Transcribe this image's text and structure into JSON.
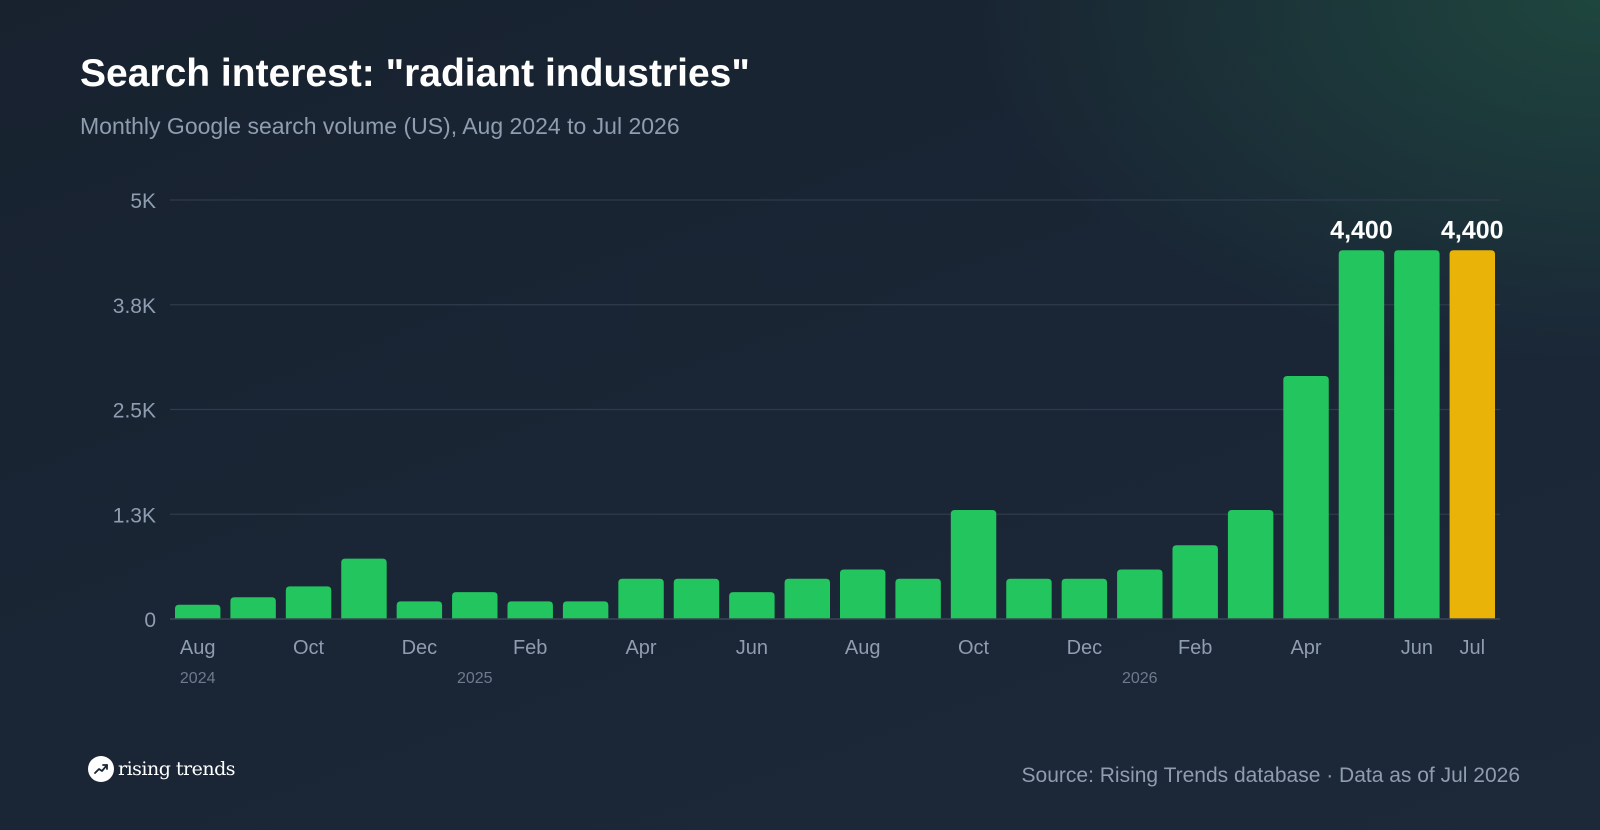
{
  "header": {
    "title": "Search interest: \"radiant industries\"",
    "subtitle": "Monthly Google search volume (US), Aug 2024 to Jul 2026"
  },
  "footer": {
    "brand": "rising trends",
    "brand_icon": "trending-up-icon",
    "source": "Source: Rising Trends database · Data as of Jul 2026"
  },
  "colors": {
    "bar": "#22c55e",
    "highlight_bar": "#eab308",
    "gridline": "#2f3b4b",
    "axis_text": "#8f9db0",
    "year_text": "#6e7b8d"
  },
  "chart_data": {
    "type": "bar",
    "categories": [
      "Aug 2024",
      "Sep 2024",
      "Oct 2024",
      "Nov 2024",
      "Dec 2024",
      "Jan 2025",
      "Feb 2025",
      "Mar 2025",
      "Apr 2025",
      "May 2025",
      "Jun 2025",
      "Jul 2025",
      "Aug 2025",
      "Sep 2025",
      "Oct 2025",
      "Nov 2025",
      "Dec 2025",
      "Jan 2026",
      "Feb 2026",
      "Mar 2026",
      "Apr 2026",
      "May 2026",
      "Jun 2026",
      "Jul 2026"
    ],
    "values": [
      170,
      260,
      390,
      720,
      210,
      320,
      210,
      210,
      480,
      480,
      320,
      480,
      590,
      480,
      1300,
      480,
      480,
      590,
      880,
      1300,
      2900,
      4400,
      4400,
      4400
    ],
    "highlight_index": 23,
    "data_labels": [
      {
        "index": 21,
        "text": "4,400"
      },
      {
        "index": 23,
        "text": "4,400"
      }
    ],
    "ylim": [
      0,
      5000
    ],
    "yticks": [
      {
        "value": 0,
        "label": "0"
      },
      {
        "value": 1250,
        "label": "1.3K"
      },
      {
        "value": 2500,
        "label": "2.5K"
      },
      {
        "value": 3750,
        "label": "3.8K"
      },
      {
        "value": 5000,
        "label": "5K"
      }
    ],
    "xtick_labels": [
      {
        "index": 0,
        "label": "Aug"
      },
      {
        "index": 2,
        "label": "Oct"
      },
      {
        "index": 4,
        "label": "Dec"
      },
      {
        "index": 6,
        "label": "Feb"
      },
      {
        "index": 8,
        "label": "Apr"
      },
      {
        "index": 10,
        "label": "Jun"
      },
      {
        "index": 12,
        "label": "Aug"
      },
      {
        "index": 14,
        "label": "Oct"
      },
      {
        "index": 16,
        "label": "Dec"
      },
      {
        "index": 18,
        "label": "Feb"
      },
      {
        "index": 20,
        "label": "Apr"
      },
      {
        "index": 22,
        "label": "Jun"
      },
      {
        "index": 23,
        "label": "Jul"
      }
    ],
    "year_labels": [
      {
        "index": 0,
        "label": "2024"
      },
      {
        "index": 5,
        "label": "2025"
      },
      {
        "index": 17,
        "label": "2026"
      }
    ],
    "grid": true,
    "legend": "none",
    "xlabel": "",
    "ylabel": ""
  }
}
